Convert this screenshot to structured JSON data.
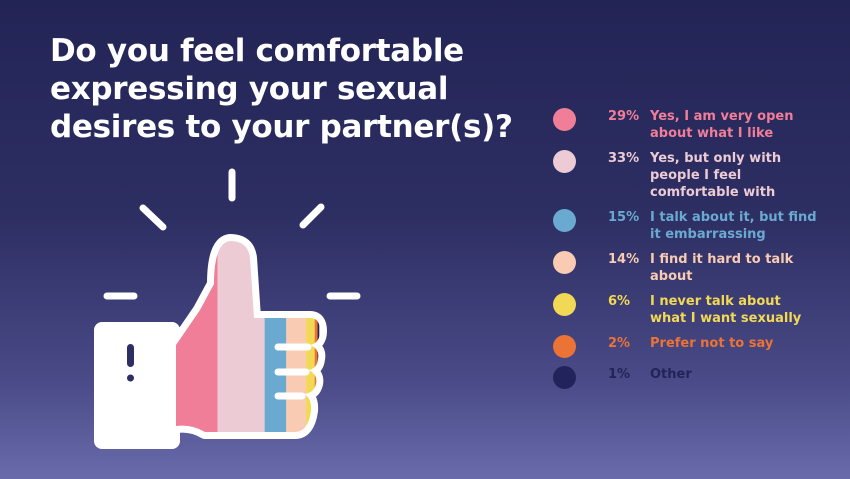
{
  "title": "Do you feel comfortable expressing your sexual desires to your partner(s)?",
  "chart_data": {
    "type": "bar",
    "stacked": true,
    "title": "Do you feel comfortable expressing your sexual desires to your partner(s)?",
    "unit": "%",
    "legend_position": "right",
    "series": [
      {
        "name": "Yes, I am very open about what I like",
        "value": 29,
        "label": "29%",
        "color": "#f07e98"
      },
      {
        "name": "Yes, but only with people I feel comfortable with",
        "value": 33,
        "label": "33%",
        "color": "#eccbd5"
      },
      {
        "name": "I talk about it, but find it embarrassing",
        "value": 15,
        "label": "15%",
        "color": "#6aaad0"
      },
      {
        "name": "I find it hard to talk about",
        "value": 14,
        "label": "14%",
        "color": "#f8cbb2"
      },
      {
        "name": "I never talk about what I want sexually",
        "value": 6,
        "label": "6%",
        "color": "#f2d955"
      },
      {
        "name": "Prefer not to say",
        "value": 2,
        "label": "2%",
        "color": "#ea7335"
      },
      {
        "name": "Other",
        "value": 1,
        "label": "1%",
        "color": "#22235a"
      }
    ]
  },
  "icons": {
    "main": "thumbs-up-icon",
    "rays": "sparkle-rays-icon"
  }
}
